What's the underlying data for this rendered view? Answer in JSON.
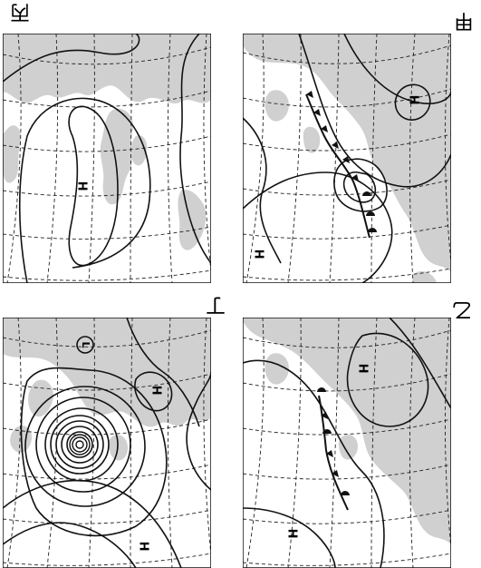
{
  "panels": [
    {
      "id": "kou",
      "letter": "丙",
      "labels": [
        "H"
      ]
    },
    {
      "id": "hei",
      "letter": "甲",
      "labels": [
        "H",
        "H"
      ]
    },
    {
      "id": "otsu",
      "letter": "丁",
      "labels": [
        "H",
        "H",
        "L"
      ]
    },
    {
      "id": "tei",
      "letter": "乙",
      "labels": [
        "H",
        "H"
      ]
    }
  ],
  "colors": {
    "land": "#d0d0d0",
    "isobar": "#111111",
    "grid": "#222222",
    "front": "#111111"
  }
}
